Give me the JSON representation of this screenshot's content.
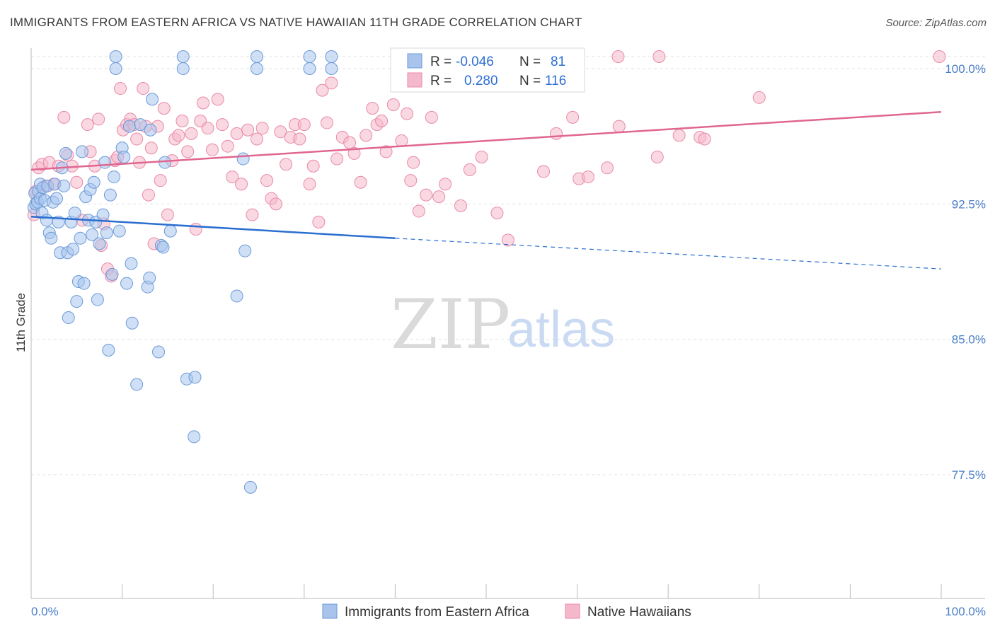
{
  "title": "IMMIGRANTS FROM EASTERN AFRICA VS NATIVE HAWAIIAN 11TH GRADE CORRELATION CHART",
  "source": "Source: ZipAtlas.com",
  "watermark": {
    "zip": "ZIP",
    "atlas": "atlas"
  },
  "legend": {
    "r_label": "R =",
    "n_label": "N =",
    "rows": [
      {
        "r": "-0.046",
        "n": "81"
      },
      {
        "r": "0.280",
        "n": "116"
      }
    ]
  },
  "bottom_legend": [
    "Immigrants from Eastern Africa",
    "Native Hawaiians"
  ],
  "colors": {
    "blue_fill": "#a8c4ec",
    "blue_stroke": "#6b9ad8",
    "blue_line": "#2a6fd0",
    "pink_fill": "#f5b8cb",
    "pink_stroke": "#e88aa8",
    "pink_line": "#e06690",
    "tick_text": "#4a7fc8",
    "grid": "#e0e0e0"
  },
  "chart_data": {
    "type": "scatter",
    "xlabel": "",
    "ylabel": "11th Grade",
    "xlim": [
      0,
      100
    ],
    "ylim": [
      70.0,
      101.5
    ],
    "x_tick_labels": [
      "0.0%",
      "100.0%"
    ],
    "y_ticks": [
      {
        "value": 100.0,
        "label": "100.0%"
      },
      {
        "value": 92.5,
        "label": "92.5%"
      },
      {
        "value": 85.0,
        "label": "85.0%"
      },
      {
        "value": 77.5,
        "label": "77.5%"
      }
    ],
    "grid": "horizontal dashed",
    "series": [
      {
        "name": "Immigrants from Eastern Africa",
        "color": "blue",
        "R": -0.046,
        "N": 81,
        "trend": {
          "x0": 0,
          "y0": 91.8,
          "x1": 40,
          "y1": 90.6,
          "dash_to_x": 100,
          "dash_to_y": 88.9
        },
        "points": [
          [
            0.3,
            92.3
          ],
          [
            0.4,
            93.1
          ],
          [
            0.5,
            92.5
          ],
          [
            0.7,
            92.6
          ],
          [
            0.8,
            93.2
          ],
          [
            1.0,
            93.6
          ],
          [
            1.0,
            92.8
          ],
          [
            1.2,
            92.0
          ],
          [
            1.3,
            93.4
          ],
          [
            1.5,
            92.7
          ],
          [
            1.7,
            91.6
          ],
          [
            1.8,
            93.5
          ],
          [
            2.0,
            90.9
          ],
          [
            2.2,
            90.6
          ],
          [
            2.4,
            92.6
          ],
          [
            2.6,
            93.6
          ],
          [
            2.8,
            92.8
          ],
          [
            3.0,
            91.5
          ],
          [
            3.2,
            89.8
          ],
          [
            3.4,
            94.5
          ],
          [
            3.6,
            93.5
          ],
          [
            3.8,
            95.3
          ],
          [
            4.0,
            89.8
          ],
          [
            4.1,
            86.2
          ],
          [
            4.4,
            91.5
          ],
          [
            4.6,
            90.0
          ],
          [
            4.8,
            92.0
          ],
          [
            5.0,
            87.1
          ],
          [
            5.2,
            88.2
          ],
          [
            5.4,
            90.6
          ],
          [
            5.6,
            95.4
          ],
          [
            5.8,
            88.1
          ],
          [
            6.0,
            92.9
          ],
          [
            6.3,
            91.6
          ],
          [
            6.5,
            93.3
          ],
          [
            6.7,
            90.8
          ],
          [
            6.9,
            93.7
          ],
          [
            7.1,
            91.5
          ],
          [
            7.3,
            87.2
          ],
          [
            7.5,
            90.3
          ],
          [
            7.9,
            91.9
          ],
          [
            8.1,
            94.8
          ],
          [
            8.3,
            90.9
          ],
          [
            8.5,
            84.4
          ],
          [
            8.7,
            93.0
          ],
          [
            8.9,
            88.6
          ],
          [
            9.1,
            94.0
          ],
          [
            9.3,
            100.0
          ],
          [
            9.7,
            91.0
          ],
          [
            10.0,
            95.6
          ],
          [
            10.2,
            95.1
          ],
          [
            10.5,
            88.1
          ],
          [
            10.8,
            96.8
          ],
          [
            11.0,
            89.2
          ],
          [
            11.1,
            85.9
          ],
          [
            11.6,
            82.5
          ],
          [
            12.0,
            96.9
          ],
          [
            12.8,
            87.9
          ],
          [
            13.0,
            88.4
          ],
          [
            13.1,
            96.6
          ],
          [
            13.3,
            98.3
          ],
          [
            14.0,
            84.3
          ],
          [
            14.3,
            90.2
          ],
          [
            14.5,
            90.1
          ],
          [
            14.7,
            94.8
          ],
          [
            15.3,
            91.0
          ],
          [
            16.7,
            100.0
          ],
          [
            17.1,
            82.8
          ],
          [
            18.0,
            82.9
          ],
          [
            17.9,
            79.6
          ],
          [
            22.6,
            87.4
          ],
          [
            23.3,
            95.0
          ],
          [
            23.5,
            89.9
          ],
          [
            24.1,
            76.8
          ],
          [
            24.8,
            100.0
          ],
          [
            30.6,
            100.0
          ],
          [
            33.0,
            100.0
          ]
        ]
      },
      {
        "name": "Native Hawaiians",
        "color": "pink",
        "R": 0.28,
        "N": 116,
        "trend": {
          "x0": 0,
          "y0": 94.4,
          "x1": 100,
          "y1": 97.6
        },
        "points": [
          [
            0.3,
            91.9
          ],
          [
            0.5,
            93.2
          ],
          [
            0.8,
            94.5
          ],
          [
            1.2,
            94.7
          ],
          [
            1.6,
            93.5
          ],
          [
            2.0,
            94.8
          ],
          [
            2.5,
            93.6
          ],
          [
            3.0,
            94.6
          ],
          [
            3.6,
            97.3
          ],
          [
            4.0,
            95.2
          ],
          [
            4.5,
            94.6
          ],
          [
            5.0,
            93.7
          ],
          [
            5.6,
            91.6
          ],
          [
            6.2,
            96.9
          ],
          [
            6.5,
            95.4
          ],
          [
            7.0,
            94.6
          ],
          [
            7.4,
            97.2
          ],
          [
            7.7,
            90.2
          ],
          [
            8.0,
            91.4
          ],
          [
            8.4,
            88.9
          ],
          [
            8.8,
            88.5
          ],
          [
            9.2,
            94.9
          ],
          [
            9.5,
            95.1
          ],
          [
            9.8,
            98.9
          ],
          [
            10.1,
            96.6
          ],
          [
            10.5,
            96.9
          ],
          [
            10.9,
            97.2
          ],
          [
            11.3,
            96.9
          ],
          [
            11.6,
            96.1
          ],
          [
            11.9,
            94.8
          ],
          [
            12.3,
            98.9
          ],
          [
            12.6,
            96.8
          ],
          [
            12.9,
            93.0
          ],
          [
            13.2,
            95.6
          ],
          [
            13.5,
            90.3
          ],
          [
            13.9,
            96.8
          ],
          [
            14.2,
            93.8
          ],
          [
            14.6,
            97.8
          ],
          [
            15.0,
            91.9
          ],
          [
            15.5,
            94.9
          ],
          [
            15.8,
            96.1
          ],
          [
            16.2,
            96.3
          ],
          [
            16.6,
            97.1
          ],
          [
            17.2,
            95.4
          ],
          [
            17.6,
            96.4
          ],
          [
            18.1,
            91.1
          ],
          [
            18.6,
            97.1
          ],
          [
            18.9,
            98.1
          ],
          [
            19.4,
            96.7
          ],
          [
            19.9,
            95.5
          ],
          [
            20.5,
            98.3
          ],
          [
            21.0,
            96.9
          ],
          [
            21.6,
            95.7
          ],
          [
            22.1,
            94.0
          ],
          [
            22.6,
            96.4
          ],
          [
            23.1,
            93.6
          ],
          [
            23.8,
            96.6
          ],
          [
            24.3,
            91.9
          ],
          [
            24.8,
            96.1
          ],
          [
            25.4,
            96.7
          ],
          [
            25.9,
            93.8
          ],
          [
            26.4,
            92.8
          ],
          [
            26.9,
            92.5
          ],
          [
            27.4,
            96.5
          ],
          [
            28.0,
            94.7
          ],
          [
            28.5,
            96.2
          ],
          [
            29.0,
            96.9
          ],
          [
            29.5,
            96.1
          ],
          [
            30.0,
            96.9
          ],
          [
            30.6,
            93.6
          ],
          [
            31.0,
            94.6
          ],
          [
            31.6,
            91.5
          ],
          [
            32.0,
            98.8
          ],
          [
            32.5,
            97.0
          ],
          [
            33.0,
            99.2
          ],
          [
            33.6,
            95.0
          ],
          [
            34.2,
            96.2
          ],
          [
            35.0,
            95.9
          ],
          [
            35.5,
            95.3
          ],
          [
            36.2,
            93.7
          ],
          [
            36.8,
            96.3
          ],
          [
            37.5,
            97.8
          ],
          [
            38.0,
            96.9
          ],
          [
            38.5,
            97.1
          ],
          [
            39.0,
            95.4
          ],
          [
            39.8,
            98.0
          ],
          [
            40.7,
            96.0
          ],
          [
            41.3,
            97.5
          ],
          [
            41.7,
            93.8
          ],
          [
            42.0,
            94.8
          ],
          [
            42.6,
            92.1
          ],
          [
            43.4,
            93.0
          ],
          [
            44.0,
            97.3
          ],
          [
            44.8,
            92.9
          ],
          [
            45.5,
            93.6
          ],
          [
            47.2,
            92.4
          ],
          [
            48.2,
            94.4
          ],
          [
            49.5,
            95.1
          ],
          [
            51.2,
            92.0
          ],
          [
            52.4,
            90.5
          ],
          [
            56.3,
            94.3
          ],
          [
            57.7,
            96.4
          ],
          [
            59.5,
            97.3
          ],
          [
            60.2,
            93.9
          ],
          [
            61.2,
            94.0
          ],
          [
            63.3,
            94.5
          ],
          [
            64.6,
            96.8
          ],
          [
            68.8,
            95.1
          ],
          [
            71.2,
            96.3
          ],
          [
            73.5,
            96.2
          ],
          [
            74.0,
            96.1
          ],
          [
            80.0,
            98.4
          ]
        ]
      }
    ],
    "top_row_points": {
      "blue_x": [
        9.3,
        16.7,
        24.8,
        30.6,
        33.0
      ],
      "pink_x": [
        41.0,
        44.5,
        55.5,
        60.0,
        64.5,
        69.0,
        99.8
      ]
    }
  }
}
